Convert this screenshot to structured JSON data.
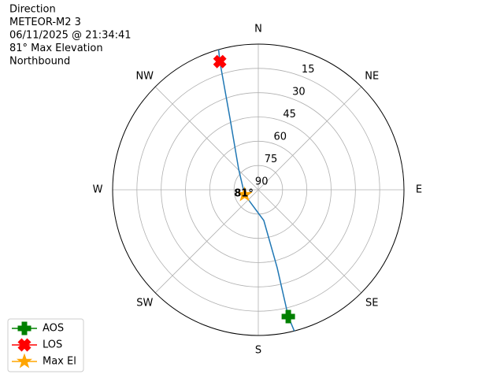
{
  "chart_data": {
    "type": "polar",
    "title_lines": [
      "Direction",
      "METEOR-M2 3",
      "06/11/2025 @ 21:34:41",
      "81° Max Elevation",
      "Northbound"
    ],
    "xticks": [
      {
        "value": 0,
        "label": "N"
      },
      {
        "value": 45,
        "label": "NE"
      },
      {
        "value": 90,
        "label": "E"
      },
      {
        "value": 135,
        "label": "SE"
      },
      {
        "value": 180,
        "label": "S"
      },
      {
        "value": 225,
        "label": "SW"
      },
      {
        "value": 270,
        "label": "W"
      },
      {
        "value": 315,
        "label": "NW"
      }
    ],
    "rlim": [
      90,
      0
    ],
    "rticks": [
      15,
      30,
      45,
      60,
      75,
      90
    ],
    "rtick_angle": 22.5,
    "grid": true,
    "track": {
      "color": "#1f77b4",
      "azimuth": [
        165.7,
        166.7,
        166.4,
        169.8,
        250.6,
        316.1,
        338.4,
        343.3,
        344.2
      ],
      "elevation": [
        0,
        9.5,
        40.4,
        70.7,
        81,
        72.5,
        42.4,
        7.3,
        0
      ]
    },
    "points": [
      {
        "name": "AOS",
        "color": "green",
        "marker": "plus",
        "azimuth": 166.7,
        "elevation": 9.5
      },
      {
        "name": "LOS",
        "color": "red",
        "marker": "x",
        "azimuth": 343.3,
        "elevation": 7.3
      },
      {
        "name": "Max El",
        "color": "orange",
        "marker": "star",
        "azimuth": 250.6,
        "elevation": 81,
        "value_label": "81°"
      }
    ],
    "legend": "lower left"
  }
}
